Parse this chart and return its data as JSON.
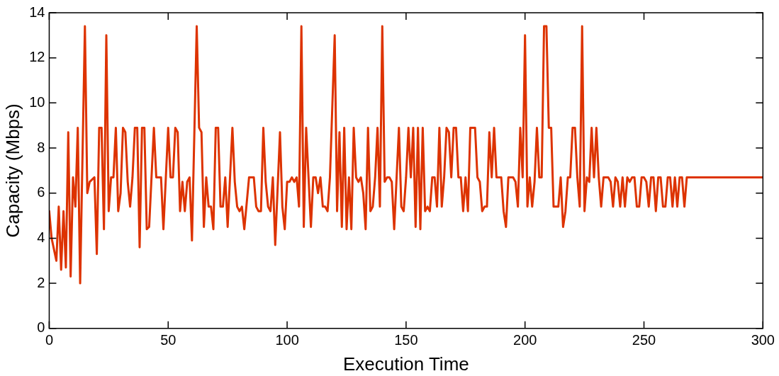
{
  "chart_data": {
    "type": "line",
    "xlabel": "Execution Time",
    "ylabel": "Capacity (Mbps)",
    "xlim": [
      0,
      300
    ],
    "ylim": [
      0,
      14
    ],
    "xticks": [
      0,
      50,
      100,
      150,
      200,
      250,
      300
    ],
    "yticks": [
      0,
      2,
      4,
      6,
      8,
      10,
      12,
      14
    ],
    "grid": false,
    "legend": false,
    "marker": "none",
    "line_style": "solid",
    "series": [
      {
        "color": "#dd3300",
        "x": [
          0,
          1,
          3,
          4,
          5,
          6,
          7,
          8,
          9,
          10,
          11,
          12,
          13,
          15,
          16,
          17,
          19,
          20,
          21,
          22,
          23,
          24,
          25,
          26,
          27,
          28,
          29,
          30,
          31,
          32,
          33,
          34,
          35,
          36,
          37,
          38,
          39,
          40,
          41,
          42,
          44,
          45,
          47,
          48,
          50,
          51,
          52,
          53,
          54,
          55,
          56,
          57,
          58,
          59,
          60,
          62,
          63,
          64,
          65,
          66,
          67,
          68,
          69,
          70,
          71,
          72,
          73,
          74,
          75,
          76,
          77,
          78,
          79,
          80,
          81,
          82,
          84,
          86,
          87,
          88,
          89,
          90,
          91,
          92,
          93,
          94,
          95,
          97,
          98,
          99,
          100,
          101,
          102,
          103,
          104,
          105,
          106,
          107,
          108,
          109,
          110,
          111,
          112,
          113,
          114,
          115,
          116,
          117,
          118,
          120,
          121,
          122,
          123,
          124,
          125,
          126,
          127,
          128,
          129,
          130,
          131,
          132,
          133,
          134,
          135,
          136,
          137,
          138,
          139,
          140,
          141,
          142,
          143,
          144,
          145,
          147,
          148,
          149,
          150,
          151,
          152,
          153,
          154,
          155,
          156,
          157,
          158,
          159,
          160,
          161,
          162,
          163,
          164,
          165,
          166,
          167,
          168,
          169,
          170,
          171,
          172,
          173,
          174,
          175,
          176,
          177,
          178,
          179,
          180,
          181,
          182,
          183,
          184,
          185,
          186,
          187,
          188,
          189,
          190,
          191,
          192,
          193,
          194,
          195,
          196,
          197,
          198,
          199,
          200,
          201,
          202,
          203,
          204,
          205,
          206,
          207,
          208,
          209,
          210,
          211,
          212,
          213,
          214,
          215,
          216,
          217,
          218,
          219,
          220,
          221,
          222,
          223,
          224,
          225,
          226,
          227,
          228,
          229,
          230,
          231,
          232,
          233,
          234,
          235,
          236,
          237,
          238,
          239,
          240,
          241,
          242,
          243,
          244,
          245,
          246,
          247,
          248,
          249,
          250,
          251,
          252,
          253,
          254,
          255,
          256,
          257,
          258,
          259,
          260,
          261,
          262,
          263,
          264,
          265,
          266,
          267,
          268,
          300
        ],
        "values": [
          5.2,
          4,
          3.0,
          5.4,
          2.6,
          5.2,
          2.7,
          8.7,
          2.3,
          6.7,
          5.4,
          8.9,
          2.0,
          13.4,
          6.0,
          6.5,
          6.7,
          3.3,
          8.9,
          8.9,
          4.4,
          13.0,
          5.2,
          6.7,
          6.7,
          8.9,
          5.2,
          6.0,
          8.9,
          8.7,
          6.5,
          5.4,
          6.7,
          8.9,
          8.9,
          3.6,
          8.9,
          8.9,
          4.4,
          4.5,
          8.9,
          6.7,
          6.7,
          4.4,
          8.9,
          6.7,
          6.7,
          8.9,
          8.7,
          5.2,
          6.5,
          5.2,
          6.5,
          6.7,
          3.9,
          13.4,
          8.9,
          8.7,
          4.5,
          6.7,
          5.4,
          5.4,
          4.4,
          8.9,
          8.9,
          5.4,
          5.4,
          6.7,
          4.5,
          6.7,
          8.9,
          6.5,
          5.4,
          5.2,
          5.4,
          4.4,
          6.7,
          6.7,
          5.4,
          5.2,
          5.2,
          8.9,
          6.5,
          5.4,
          5.2,
          6.7,
          3.7,
          8.7,
          5.4,
          4.4,
          6.5,
          6.5,
          6.7,
          6.5,
          6.7,
          5.4,
          13.4,
          4.5,
          8.9,
          6.7,
          4.5,
          6.7,
          6.7,
          6.0,
          6.7,
          5.4,
          5.4,
          5.2,
          6.7,
          13.0,
          5.2,
          8.7,
          4.5,
          8.9,
          4.4,
          6.7,
          4.4,
          8.9,
          6.7,
          6.5,
          6.7,
          6.0,
          4.4,
          8.9,
          5.2,
          5.4,
          6.7,
          8.9,
          5.4,
          13.4,
          6.5,
          6.7,
          6.7,
          6.5,
          4.4,
          8.9,
          5.4,
          5.2,
          6.7,
          8.9,
          6.7,
          8.9,
          4.5,
          8.9,
          4.4,
          8.9,
          5.2,
          5.4,
          5.2,
          6.7,
          6.7,
          5.4,
          8.9,
          5.4,
          6.7,
          8.9,
          8.7,
          6.7,
          8.9,
          8.9,
          6.7,
          6.7,
          5.2,
          6.7,
          5.2,
          8.9,
          8.9,
          8.9,
          6.7,
          6.5,
          5.2,
          5.4,
          5.4,
          8.7,
          6.7,
          8.9,
          6.7,
          6.7,
          6.7,
          5.2,
          4.5,
          6.7,
          6.7,
          6.7,
          6.5,
          5.4,
          8.9,
          6.7,
          13.0,
          5.4,
          6.7,
          5.4,
          6.5,
          8.9,
          6.7,
          6.7,
          13.4,
          13.4,
          8.9,
          8.9,
          5.4,
          5.4,
          5.4,
          6.7,
          4.5,
          5.2,
          6.7,
          6.7,
          8.9,
          8.9,
          6.7,
          5.4,
          13.4,
          5.2,
          6.7,
          6.5,
          8.9,
          6.7,
          8.9,
          6.7,
          5.4,
          6.7,
          6.7,
          6.7,
          6.5,
          5.4,
          6.7,
          6.5,
          5.4,
          6.7,
          5.4,
          6.7,
          6.5,
          6.7,
          6.7,
          5.4,
          5.4,
          6.7,
          6.7,
          6.5,
          5.4,
          6.7,
          6.7,
          5.2,
          6.7,
          6.7,
          5.4,
          5.4,
          6.7,
          6.7,
          5.4,
          6.7,
          5.4,
          6.7,
          6.7,
          5.4,
          6.7,
          6.7
        ]
      }
    ]
  }
}
